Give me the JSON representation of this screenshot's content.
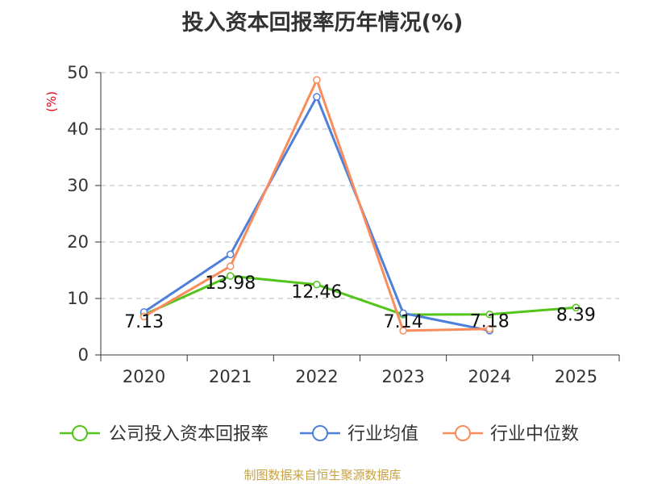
{
  "title": "投入资本回报率历年情况(%)",
  "source": "制图数据来自恒生聚源数据库",
  "chart_data": {
    "type": "line",
    "title": "投入资本回报率历年情况(%)",
    "ylabel": "(%)",
    "categories": [
      "2020",
      "2021",
      "2022",
      "2023",
      "2024",
      "2025"
    ],
    "ylim": [
      0,
      50
    ],
    "yticks": [
      0,
      10,
      20,
      30,
      40,
      50
    ],
    "grid": true,
    "legend_position": "bottom",
    "series": [
      {
        "name": "公司投入资本回报率",
        "color": "#52c41a",
        "values": [
          7.13,
          13.98,
          12.46,
          7.14,
          7.18,
          8.39
        ],
        "labels": [
          "7.13",
          "13.98",
          "12.46",
          "7.14",
          "7.18",
          "8.39"
        ]
      },
      {
        "name": "行业均值",
        "color": "#4e7fdb",
        "values": [
          7.6,
          17.8,
          45.7,
          7.4,
          4.3,
          null
        ]
      },
      {
        "name": "行业中位数",
        "color": "#fa8c5c",
        "values": [
          6.8,
          15.7,
          48.7,
          4.3,
          4.6,
          null
        ]
      }
    ]
  }
}
